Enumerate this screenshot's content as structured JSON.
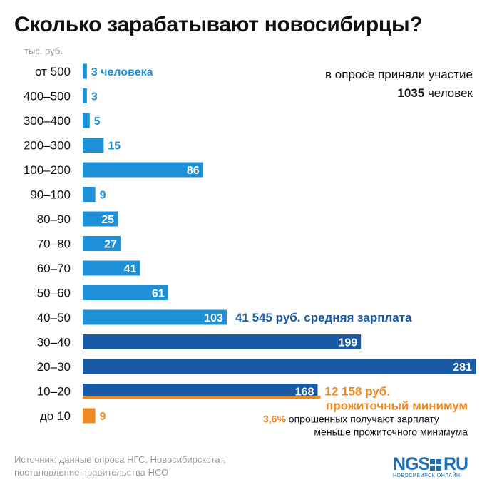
{
  "title": "Сколько зарабатывают новосибирцы?",
  "unit_label": "тыс. руб.",
  "participation": {
    "line1": "в опросе приняли участие",
    "count": "1035",
    "line2_suffix": " человек"
  },
  "colors": {
    "light_blue": "#1e90d8",
    "dark_blue": "#1a5aa5",
    "orange": "#ef8a22",
    "text": "#111111",
    "muted": "#9a9a9a",
    "note_blue": "#1a5aa5"
  },
  "chart_data": {
    "type": "bar",
    "orientation": "horizontal",
    "categories": [
      "от 500",
      "400–500",
      "300–400",
      "200–300",
      "100–200",
      "90–100",
      "80–90",
      "70–80",
      "60–70",
      "50–60",
      "40–50",
      "30–40",
      "20–30",
      "10–20",
      "до 10"
    ],
    "values": [
      3,
      3,
      5,
      15,
      86,
      9,
      25,
      27,
      41,
      61,
      103,
      199,
      281,
      168,
      9
    ],
    "value_labels": [
      "3 человека",
      "3",
      "5",
      "15",
      "86",
      "9",
      "25",
      "27",
      "41",
      "61",
      "103",
      "199",
      "281",
      "168",
      "9"
    ],
    "bar_colors": [
      "light_blue",
      "light_blue",
      "light_blue",
      "light_blue",
      "light_blue",
      "light_blue",
      "light_blue",
      "light_blue",
      "light_blue",
      "light_blue",
      "light_blue",
      "dark_blue",
      "dark_blue",
      "dark_blue",
      "orange"
    ],
    "xlim": [
      0,
      281
    ],
    "ylabel": "тыс. руб.",
    "annotations": {
      "average": "41 545 руб. средняя зарплата",
      "minimum_value": "12 158 руб.",
      "minimum_label": "прожиточный минимум",
      "below_min_pct": "3,6%",
      "below_min_text1": " опрошенных получают зарплату",
      "below_min_text2": "меньше прожиточного минимума"
    }
  },
  "source": {
    "line1": "Источник: данные опроса НГС, Новосибирскстат,",
    "line2": "постановление правительства НСО"
  },
  "logo": {
    "left": "NGS",
    "right": "RU",
    "tagline": "НОВОСИБИРСК ОНЛАЙН"
  }
}
